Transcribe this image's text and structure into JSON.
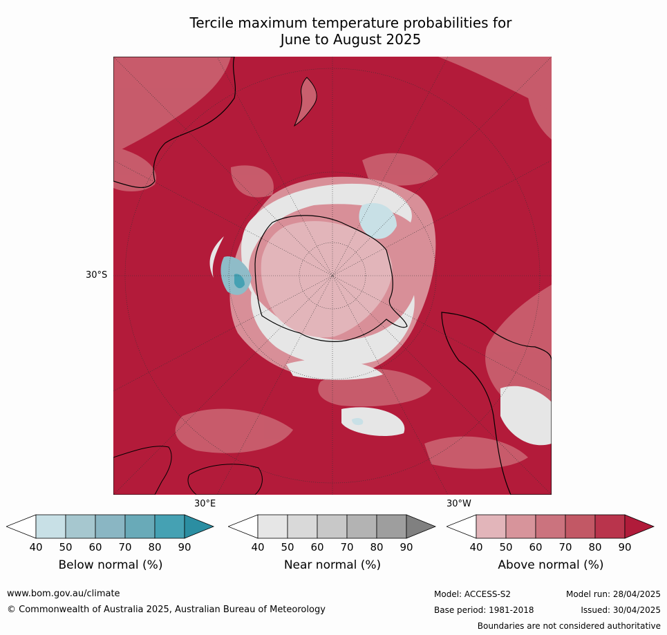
{
  "title_line1": "Tercile maximum temperature probabilities for",
  "title_line2": "June to August 2025",
  "map": {
    "lat_label": "30°S",
    "lon_label_east": "30°E",
    "lon_label_west": "30°W",
    "colors": {
      "above_90": "#b31b3a",
      "above_80": "#c0364f",
      "above_70": "#c95f6e",
      "above_60": "#d88f98",
      "above_50": "#e2b5ba",
      "near": "#e6e6e6",
      "below_50": "#c8e0e6",
      "below_70": "#8fbcc8",
      "land_outline": "#000000"
    }
  },
  "colorbars": [
    {
      "title": "Below normal (%)",
      "ticks": [
        "40",
        "50",
        "60",
        "70",
        "80",
        "90"
      ],
      "colors": [
        "#ffffff",
        "#c8e0e6",
        "#a6c7cf",
        "#8ab6c3",
        "#69aab8",
        "#45a1b3",
        "#2b8ea2"
      ]
    },
    {
      "title": "Near normal (%)",
      "ticks": [
        "40",
        "50",
        "60",
        "70",
        "80",
        "90"
      ],
      "colors": [
        "#ffffff",
        "#e6e6e6",
        "#d9d9d9",
        "#c8c8c8",
        "#b3b3b3",
        "#9e9e9e",
        "#808080"
      ]
    },
    {
      "title": "Above normal (%)",
      "ticks": [
        "40",
        "50",
        "60",
        "70",
        "80",
        "90"
      ],
      "colors": [
        "#ffffff",
        "#e2b5ba",
        "#d7949b",
        "#cb737e",
        "#c25865",
        "#b9344c",
        "#b01b3a"
      ]
    }
  ],
  "footer": {
    "website": "www.bom.gov.au/climate",
    "copyright": "© Commonwealth of Australia 2025, Australian Bureau of Meteorology",
    "model": "Model: ACCESS-S2",
    "model_run": "Model run: 28/04/2025",
    "base_period": "Base period: 1981-2018",
    "issued": "Issued: 30/04/2025",
    "disclaimer": "Boundaries are not considered authoritative"
  }
}
